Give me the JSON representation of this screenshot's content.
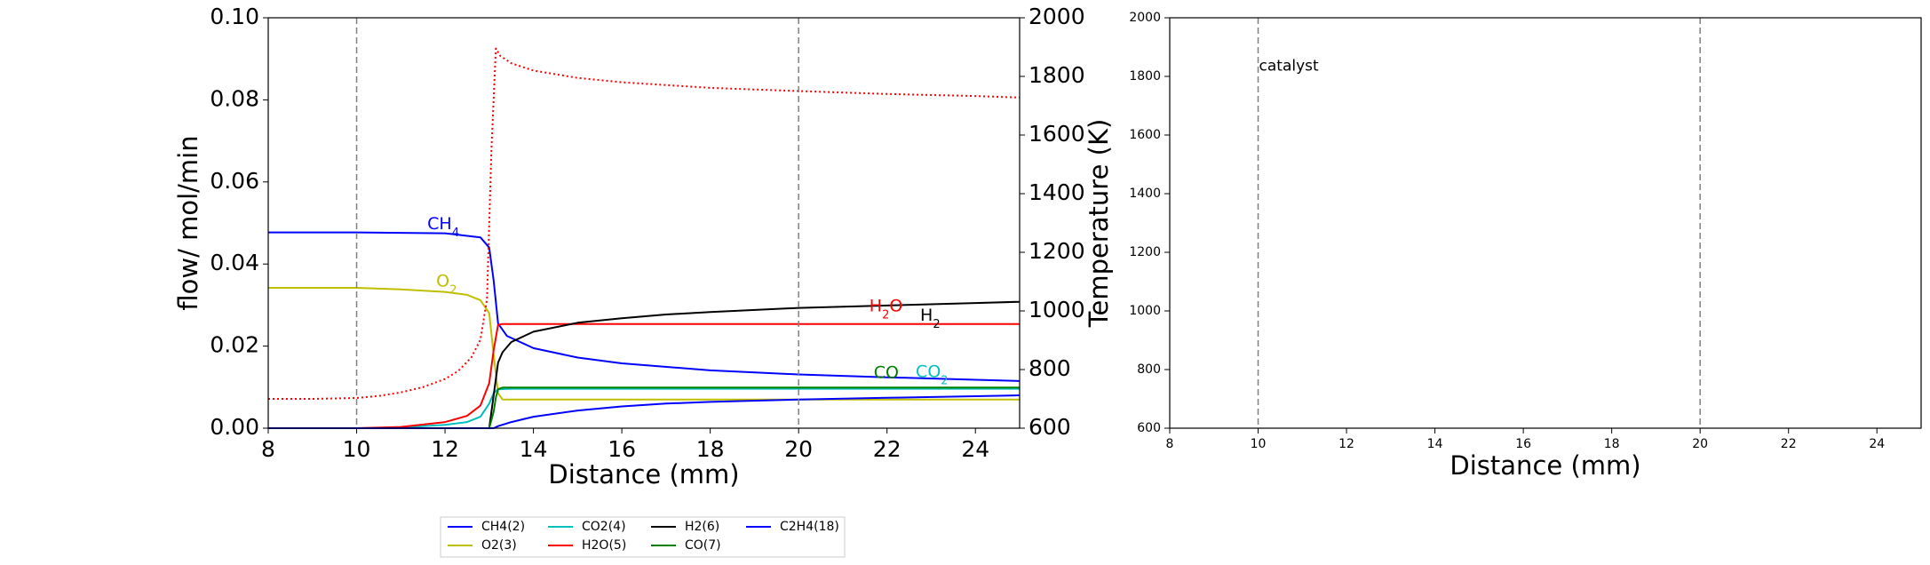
{
  "chart_data": [
    {
      "type": "line",
      "xlabel": "Distance (mm)",
      "ylabel": "flow/ mol/min",
      "y2label": "Temperature (K)",
      "xlim": [
        8,
        25
      ],
      "ylim": [
        0,
        0.1
      ],
      "y2lim": [
        600,
        2000
      ],
      "xticks": [
        "8",
        "10",
        "12",
        "14",
        "16",
        "18",
        "20",
        "22",
        "24"
      ],
      "yticks": [
        "0.00",
        "0.02",
        "0.04",
        "0.06",
        "0.08",
        "0.10"
      ],
      "y2ticks": [
        "600",
        "800",
        "1000",
        "1200",
        "1400",
        "1600",
        "1800",
        "2000"
      ],
      "vlines": [
        10,
        20
      ],
      "grid": false,
      "colors": {
        "CH4": "#0000ff",
        "O2": "#bfbf00",
        "CO2": "#00bfbf",
        "H2O": "#ff0000",
        "H2": "#000000",
        "CO": "#008000",
        "C2H4": "#0000ff",
        "temperature": "#ff0000"
      },
      "series": [
        {
          "name": "CH4(2)",
          "color": "CH4",
          "x": [
            8,
            10,
            12,
            12.8,
            13.0,
            13.1,
            13.2,
            13.4,
            14,
            15,
            16,
            18,
            20,
            22,
            24,
            25
          ],
          "y": [
            0.0477,
            0.0477,
            0.0475,
            0.0465,
            0.044,
            0.036,
            0.0255,
            0.0225,
            0.0195,
            0.0172,
            0.0158,
            0.0141,
            0.0131,
            0.0124,
            0.0118,
            0.0115
          ]
        },
        {
          "name": "O2(3)",
          "color": "O2",
          "x": [
            8,
            10,
            11,
            12,
            12.5,
            12.8,
            13.0,
            13.1,
            13.2,
            13.3,
            14,
            16,
            20,
            25
          ],
          "y": [
            0.0342,
            0.0342,
            0.0338,
            0.0332,
            0.0325,
            0.0312,
            0.028,
            0.018,
            0.0085,
            0.007,
            0.007,
            0.007,
            0.007,
            0.007
          ]
        },
        {
          "name": "CO2(4)",
          "color": "CO2",
          "x": [
            8,
            10,
            11,
            12,
            12.5,
            12.8,
            13.0,
            13.1,
            13.2,
            13.5,
            16,
            20,
            25
          ],
          "y": [
            0.0,
            0.0,
            0.0002,
            0.0008,
            0.0015,
            0.0028,
            0.006,
            0.0085,
            0.0095,
            0.0096,
            0.0096,
            0.0096,
            0.0096
          ]
        },
        {
          "name": "H2O(5)",
          "color": "H2O",
          "x": [
            8,
            10,
            11,
            12,
            12.5,
            12.8,
            13.0,
            13.1,
            13.2,
            13.3,
            14,
            16,
            20,
            25
          ],
          "y": [
            0.0,
            0.0,
            0.0003,
            0.0015,
            0.003,
            0.0055,
            0.011,
            0.019,
            0.0252,
            0.0254,
            0.0254,
            0.0254,
            0.0254,
            0.0254
          ]
        },
        {
          "name": "H2(6)",
          "color": "H2",
          "x": [
            8,
            12,
            13.0,
            13.1,
            13.2,
            13.3,
            13.5,
            14,
            15,
            16,
            17,
            18,
            20,
            22,
            24,
            25
          ],
          "y": [
            0.0,
            0.0,
            0.0,
            0.008,
            0.016,
            0.0185,
            0.021,
            0.0235,
            0.0257,
            0.0268,
            0.0277,
            0.0283,
            0.0293,
            0.0299,
            0.0305,
            0.0308
          ]
        },
        {
          "name": "CO(7)",
          "color": "CO",
          "x": [
            8,
            12,
            13.0,
            13.1,
            13.15,
            13.2,
            13.3,
            14,
            16,
            20,
            25
          ],
          "y": [
            0.0,
            0.0,
            0.0,
            0.004,
            0.0075,
            0.0095,
            0.0099,
            0.0099,
            0.0099,
            0.0099,
            0.0099
          ]
        },
        {
          "name": "C2H4(18)",
          "color": "C2H4",
          "x": [
            8,
            13.0,
            13.1,
            13.2,
            13.5,
            14,
            15,
            16,
            17,
            18,
            20,
            22,
            24,
            25
          ],
          "y": [
            0.0,
            0.0,
            0.0,
            0.0005,
            0.0015,
            0.0028,
            0.0043,
            0.0053,
            0.006,
            0.0064,
            0.007,
            0.0074,
            0.0078,
            0.008
          ]
        },
        {
          "name": "",
          "color": "temperature",
          "axis": "y2",
          "dash": "dotted",
          "x": [
            8,
            9,
            10,
            10.5,
            11,
            11.5,
            12,
            12.3,
            12.6,
            12.8,
            12.95,
            13.05,
            13.15,
            13.25,
            13.5,
            14,
            15,
            16,
            18,
            20,
            22,
            24,
            25
          ],
          "y": [
            700,
            700,
            703,
            710,
            722,
            740,
            768,
            795,
            842,
            902,
            1040,
            1550,
            1895,
            1870,
            1845,
            1820,
            1795,
            1780,
            1761,
            1750,
            1740,
            1733,
            1728
          ]
        }
      ],
      "annotations": [
        {
          "text": "CH",
          "sub": "4",
          "x": 11.6,
          "y": 0.0485,
          "color": "CH4"
        },
        {
          "text": "O",
          "sub": "2",
          "x": 11.8,
          "y": 0.0345,
          "color": "O2"
        },
        {
          "text": "H",
          "sub": "2",
          "after": "O",
          "x": 21.6,
          "y": 0.0285,
          "color": "H2O"
        },
        {
          "text": "H",
          "sub": "2",
          "x": 22.75,
          "y": 0.0262,
          "color": "H2"
        },
        {
          "text": "CO",
          "sub": "",
          "x": 21.7,
          "y": 0.0122,
          "color": "CO"
        },
        {
          "text": "CO",
          "sub": "2",
          "x": 22.65,
          "y": 0.0125,
          "color": "CO2"
        }
      ]
    },
    {
      "type": "line",
      "xlabel": "Distance (mm)",
      "ylabel": "",
      "xlim": [
        8,
        25
      ],
      "ylim": [
        600,
        2000
      ],
      "xticks": [
        "8",
        "10",
        "12",
        "14",
        "16",
        "18",
        "20",
        "22",
        "24"
      ],
      "yticks": [
        "600",
        "800",
        "1000",
        "1200",
        "1400",
        "1600",
        "1800",
        "2000"
      ],
      "vlines": [
        10,
        20
      ],
      "grid": false,
      "annotations": [
        {
          "text": "catalyst",
          "x": 10.0,
          "y": 1820
        }
      ],
      "series": []
    }
  ],
  "legend": {
    "placement": "below",
    "entries": [
      {
        "label": "CH4(2)",
        "color": "CH4"
      },
      {
        "label": "O2(3)",
        "color": "O2"
      },
      {
        "label": "CO2(4)",
        "color": "CO2"
      },
      {
        "label": "H2O(5)",
        "color": "H2O"
      },
      {
        "label": "H2(6)",
        "color": "H2"
      },
      {
        "label": "CO(7)",
        "color": "CO"
      },
      {
        "label": "C2H4(18)",
        "color": "C2H4"
      }
    ]
  }
}
